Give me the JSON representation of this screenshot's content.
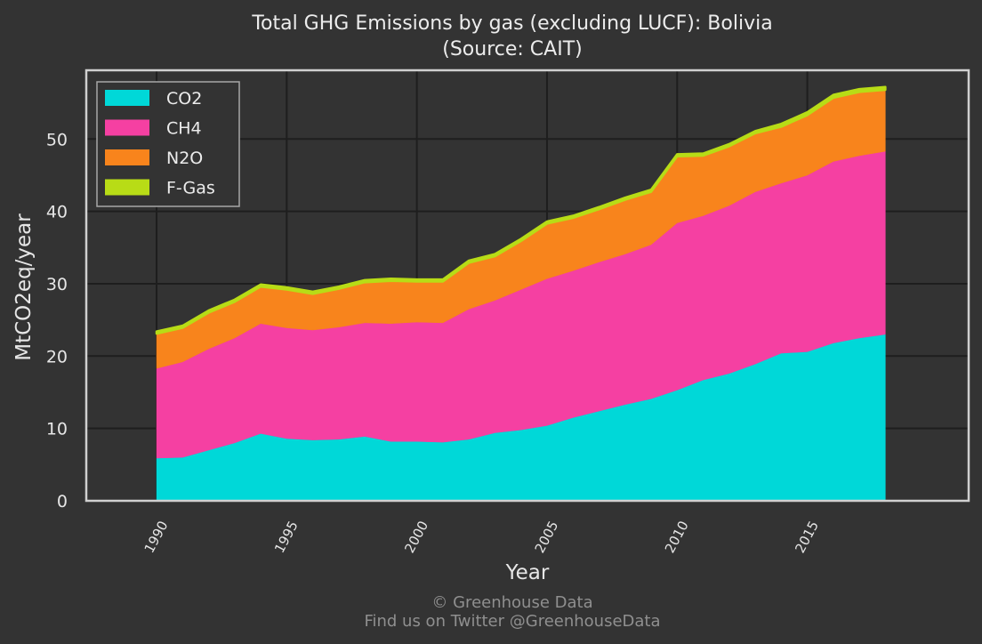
{
  "chart_data": {
    "type": "area",
    "stacked": true,
    "title": "Total GHG Emissions by gas (excluding LUCF): Bolivia",
    "subtitle": "(Source: CAIT)",
    "xlabel": "Year",
    "ylabel": "MtCO2eq/year",
    "xlim": [
      1987.3,
      2021.2
    ],
    "ylim": [
      0,
      59.5
    ],
    "x_ticks": [
      "1990",
      "1995",
      "2000",
      "2005",
      "2010",
      "2015"
    ],
    "y_ticks": [
      "0",
      "10",
      "20",
      "30",
      "40",
      "50"
    ],
    "grid": true,
    "legend_position": "top-left",
    "x": [
      1990,
      1991,
      1992,
      1993,
      1994,
      1995,
      1996,
      1997,
      1998,
      1999,
      2000,
      2001,
      2002,
      2003,
      2004,
      2005,
      2006,
      2007,
      2008,
      2009,
      2010,
      2011,
      2012,
      2013,
      2014,
      2015,
      2016,
      2017,
      2018
    ],
    "series": [
      {
        "name": "CO2",
        "color": "#00d8d8",
        "values": [
          5.9,
          6.0,
          7.0,
          8.0,
          9.3,
          8.6,
          8.4,
          8.5,
          8.9,
          8.2,
          8.2,
          8.1,
          8.5,
          9.4,
          9.8,
          10.4,
          11.5,
          12.4,
          13.3,
          14.1,
          15.3,
          16.7,
          17.6,
          18.9,
          20.4,
          20.6,
          21.8,
          22.5,
          23.0
        ]
      },
      {
        "name": "CH4",
        "color": "#f540a2",
        "values": [
          12.4,
          13.2,
          14.0,
          14.5,
          15.2,
          15.3,
          15.2,
          15.5,
          15.7,
          16.3,
          16.5,
          16.5,
          18.0,
          18.3,
          19.4,
          20.3,
          20.3,
          20.6,
          20.8,
          21.3,
          23.1,
          22.7,
          23.2,
          23.8,
          23.5,
          24.4,
          25.1,
          25.2,
          25.3
        ]
      },
      {
        "name": "N2O",
        "color": "#f8841c",
        "values": [
          4.8,
          4.7,
          5.0,
          5.0,
          5.1,
          5.3,
          5.0,
          5.3,
          5.6,
          5.9,
          5.6,
          5.7,
          6.4,
          6.1,
          6.7,
          7.6,
          7.3,
          7.3,
          7.5,
          7.3,
          9.2,
          8.3,
          8.2,
          8.1,
          7.8,
          8.3,
          8.8,
          8.8,
          8.5
        ]
      },
      {
        "name": "F-Gas",
        "color": "#b8dc16",
        "values": [
          0.3,
          0.3,
          0.3,
          0.3,
          0.3,
          0.3,
          0.3,
          0.3,
          0.3,
          0.3,
          0.3,
          0.3,
          0.3,
          0.3,
          0.3,
          0.3,
          0.3,
          0.3,
          0.3,
          0.3,
          0.3,
          0.3,
          0.3,
          0.3,
          0.4,
          0.4,
          0.4,
          0.4,
          0.4
        ]
      }
    ]
  },
  "footer": {
    "line1": "© Greenhouse Data",
    "line2": "Find us on Twitter @GreenhouseData"
  },
  "colors": {
    "background": "#333333",
    "plot_background": "#333333",
    "grid": "#1e1e1e",
    "frame": "#d0d0d0"
  }
}
